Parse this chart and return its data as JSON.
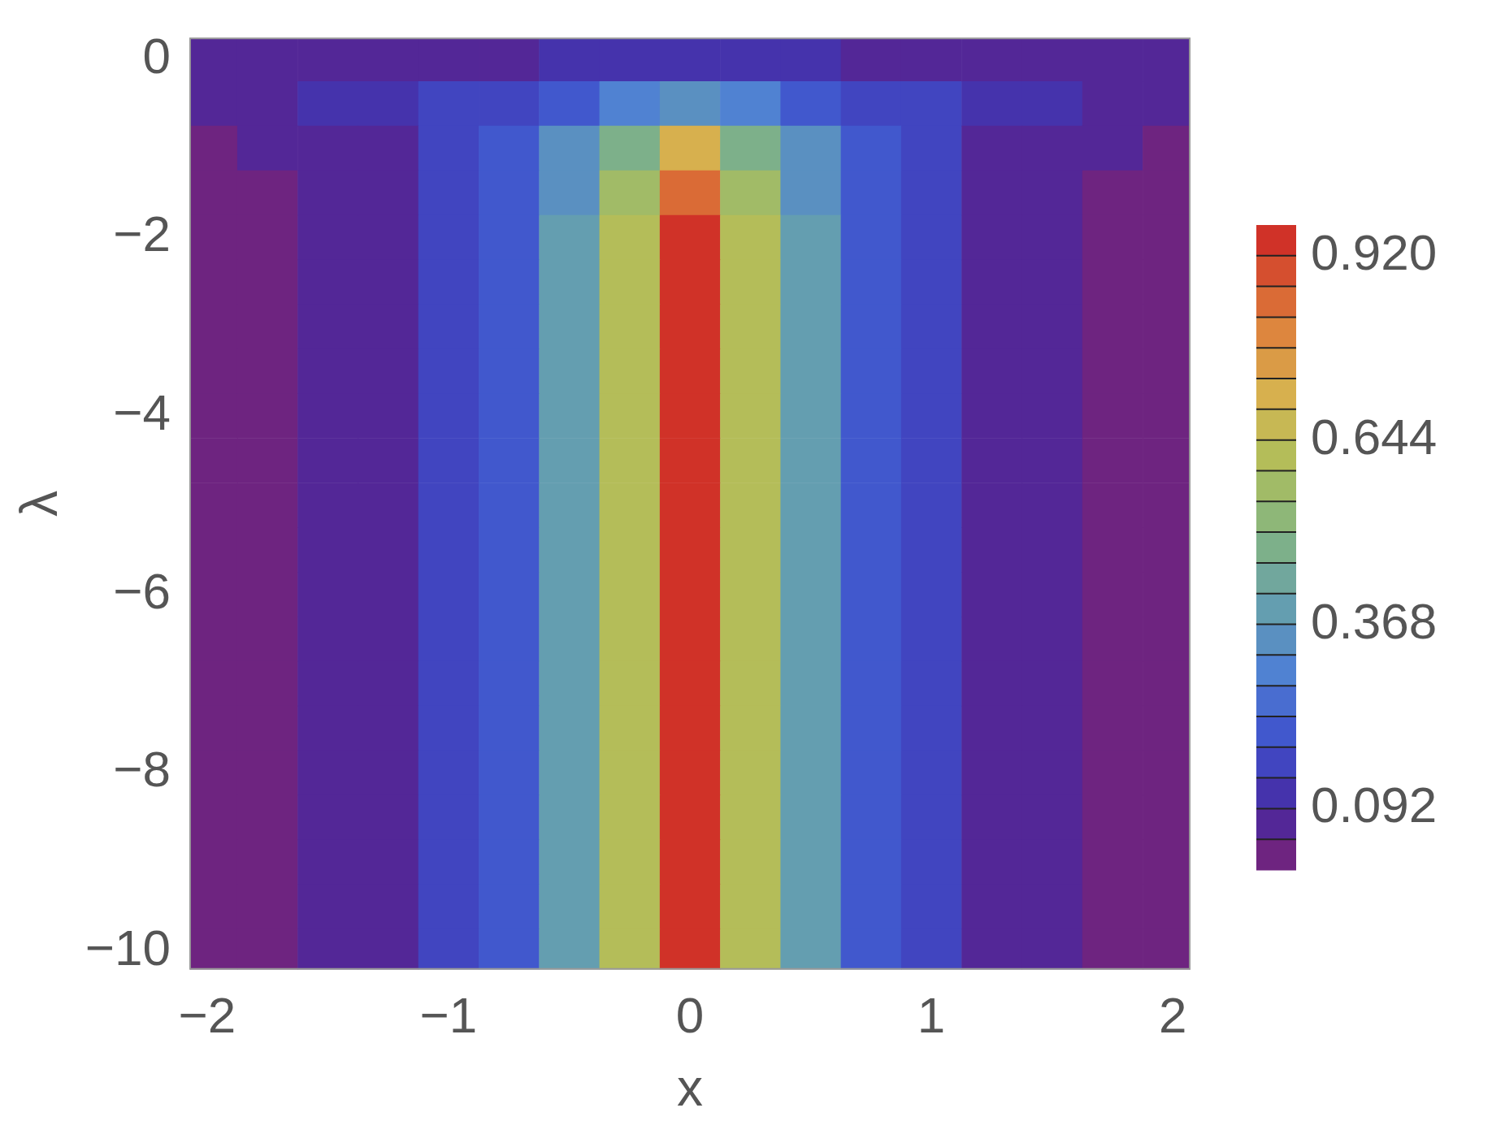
{
  "chart_data": {
    "type": "heatmap",
    "xlabel": "x",
    "ylabel": "λ",
    "x": [
      -2,
      -1.75,
      -1.5,
      -1.25,
      -1,
      -0.75,
      -0.5,
      -0.25,
      0,
      0.25,
      0.5,
      0.75,
      1,
      1.25,
      1.5,
      1.75,
      2
    ],
    "y": [
      0,
      -0.5,
      -1,
      -1.5,
      -2,
      -2.5,
      -3,
      -3.5,
      -4,
      -4.5,
      -5,
      -5.5,
      -6,
      -6.5,
      -7,
      -7.5,
      -8,
      -8.5,
      -9,
      -9.5,
      -10
    ],
    "cells": [
      [
        0.07,
        0.07,
        0.08,
        0.08,
        0.09,
        0.09,
        0.1,
        0.11,
        0.12,
        0.11,
        0.1,
        0.09,
        0.09,
        0.08,
        0.08,
        0.07,
        0.07
      ],
      [
        0.07,
        0.08,
        0.1,
        0.12,
        0.14,
        0.17,
        0.22,
        0.3,
        0.35,
        0.3,
        0.22,
        0.17,
        0.14,
        0.12,
        0.1,
        0.08,
        0.07
      ],
      [
        0.045,
        0.05,
        0.07,
        0.09,
        0.14,
        0.22,
        0.33,
        0.5,
        0.7,
        0.5,
        0.33,
        0.22,
        0.14,
        0.09,
        0.07,
        0.05,
        0.045
      ],
      [
        0.03,
        0.035,
        0.05,
        0.08,
        0.14,
        0.22,
        0.36,
        0.56,
        0.85,
        0.56,
        0.36,
        0.22,
        0.14,
        0.08,
        0.05,
        0.035,
        0.03
      ],
      [
        0.02,
        0.03,
        0.05,
        0.08,
        0.14,
        0.22,
        0.37,
        0.6,
        0.95,
        0.6,
        0.37,
        0.22,
        0.14,
        0.08,
        0.05,
        0.03,
        0.02
      ],
      [
        0.02,
        0.03,
        0.05,
        0.08,
        0.14,
        0.22,
        0.37,
        0.6,
        0.95,
        0.6,
        0.37,
        0.22,
        0.14,
        0.08,
        0.05,
        0.03,
        0.02
      ],
      [
        0.02,
        0.03,
        0.05,
        0.08,
        0.14,
        0.22,
        0.37,
        0.6,
        0.95,
        0.6,
        0.37,
        0.22,
        0.14,
        0.08,
        0.05,
        0.03,
        0.02
      ],
      [
        0.02,
        0.03,
        0.05,
        0.08,
        0.14,
        0.22,
        0.37,
        0.6,
        0.95,
        0.6,
        0.37,
        0.22,
        0.14,
        0.08,
        0.05,
        0.03,
        0.02
      ],
      [
        0.02,
        0.03,
        0.05,
        0.08,
        0.14,
        0.22,
        0.37,
        0.6,
        0.95,
        0.6,
        0.37,
        0.22,
        0.14,
        0.08,
        0.05,
        0.03,
        0.02
      ],
      [
        0.02,
        0.03,
        0.05,
        0.08,
        0.14,
        0.22,
        0.37,
        0.6,
        0.95,
        0.6,
        0.37,
        0.22,
        0.14,
        0.08,
        0.05,
        0.03,
        0.02
      ],
      [
        0.02,
        0.03,
        0.05,
        0.08,
        0.14,
        0.22,
        0.37,
        0.6,
        0.95,
        0.6,
        0.37,
        0.22,
        0.14,
        0.08,
        0.05,
        0.03,
        0.02
      ],
      [
        0.02,
        0.03,
        0.05,
        0.08,
        0.14,
        0.22,
        0.37,
        0.6,
        0.95,
        0.6,
        0.37,
        0.22,
        0.14,
        0.08,
        0.05,
        0.03,
        0.02
      ],
      [
        0.02,
        0.03,
        0.05,
        0.08,
        0.14,
        0.22,
        0.37,
        0.6,
        0.95,
        0.6,
        0.37,
        0.22,
        0.14,
        0.08,
        0.05,
        0.03,
        0.02
      ],
      [
        0.02,
        0.03,
        0.05,
        0.08,
        0.14,
        0.22,
        0.37,
        0.6,
        0.95,
        0.6,
        0.37,
        0.22,
        0.14,
        0.08,
        0.05,
        0.03,
        0.02
      ],
      [
        0.02,
        0.03,
        0.05,
        0.08,
        0.14,
        0.22,
        0.37,
        0.6,
        0.95,
        0.6,
        0.37,
        0.22,
        0.14,
        0.08,
        0.05,
        0.03,
        0.02
      ],
      [
        0.02,
        0.03,
        0.05,
        0.08,
        0.14,
        0.22,
        0.37,
        0.6,
        0.95,
        0.6,
        0.37,
        0.22,
        0.14,
        0.08,
        0.05,
        0.03,
        0.02
      ],
      [
        0.02,
        0.03,
        0.05,
        0.08,
        0.14,
        0.22,
        0.37,
        0.6,
        0.95,
        0.6,
        0.37,
        0.22,
        0.14,
        0.08,
        0.05,
        0.03,
        0.02
      ],
      [
        0.02,
        0.03,
        0.05,
        0.08,
        0.14,
        0.22,
        0.37,
        0.6,
        0.95,
        0.6,
        0.37,
        0.22,
        0.14,
        0.08,
        0.05,
        0.03,
        0.02
      ],
      [
        0.02,
        0.03,
        0.05,
        0.08,
        0.14,
        0.22,
        0.37,
        0.6,
        0.95,
        0.6,
        0.37,
        0.22,
        0.14,
        0.08,
        0.05,
        0.03,
        0.02
      ],
      [
        0.02,
        0.03,
        0.05,
        0.08,
        0.14,
        0.22,
        0.37,
        0.6,
        0.95,
        0.6,
        0.37,
        0.22,
        0.14,
        0.08,
        0.05,
        0.03,
        0.02
      ],
      [
        0.02,
        0.03,
        0.05,
        0.08,
        0.14,
        0.22,
        0.37,
        0.6,
        0.95,
        0.6,
        0.37,
        0.22,
        0.14,
        0.08,
        0.05,
        0.03,
        0.02
      ]
    ],
    "xlim": [
      -2.07,
      2.07
    ],
    "xticks": [
      {
        "value": -2,
        "label": "−2"
      },
      {
        "value": -1,
        "label": "−1"
      },
      0,
      1,
      2
    ],
    "ylim": [
      -10.2,
      0.23
    ],
    "yticks": [
      {
        "value": -10,
        "label": "−10"
      },
      {
        "value": -8,
        "label": "−8"
      },
      {
        "value": -6,
        "label": "−6"
      },
      {
        "value": -4,
        "label": "−4"
      },
      {
        "value": -2,
        "label": "−2"
      },
      0
    ],
    "clim": [
      0,
      0.966
    ],
    "cticks": [
      {
        "value": 0.092,
        "label": "0.092"
      },
      {
        "value": 0.368,
        "label": "0.368"
      },
      {
        "value": 0.644,
        "label": "0.644"
      },
      {
        "value": 0.92,
        "label": "0.920"
      }
    ]
  }
}
